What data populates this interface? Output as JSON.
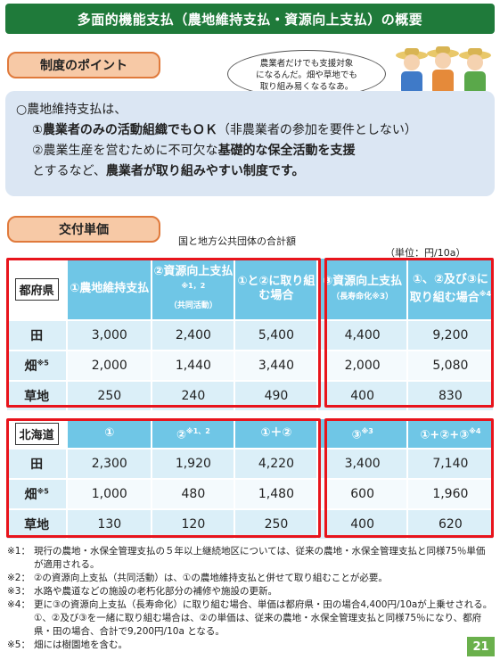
{
  "title": "多面的機能支払（農地維持支払・資源向上支払）の概要",
  "points_label": "制度のポイント",
  "bubble_lines": [
    "農業者だけでも支援対象",
    "になるんだ。畑や草地でも",
    "取り組み易くなるなあ。"
  ],
  "points": {
    "line1": "○農地維持支払は、",
    "line2": "①農業者のみの活動組織でもＯＫ",
    "line2_tail": "（非農業者の参加を要件としない）",
    "line3": "②農業生産を営むために不可欠な",
    "line3_bold": "基礎的な保全活動を支援",
    "line4": "とするなど、",
    "line4_bold": "農業者が取り組みやすい制度です。"
  },
  "grant_label": "交付単価",
  "caption": "国と地方公共団体の合計額",
  "unit": "（単位：円/10a）",
  "pref_table": {
    "label": "都府県",
    "headers": [
      "①農地維持支払",
      "②資源向上支払",
      "①と②に取り組む場合",
      "③資源向上支払",
      "①、②及び③に取り組む場合"
    ],
    "header_notes": [
      "",
      "※1，2",
      "",
      "",
      "※4"
    ],
    "header_subs": [
      "",
      "（共同活動）",
      "",
      "（長寿命化※3）",
      ""
    ],
    "rows": [
      {
        "name": "田",
        "mark": "",
        "values": [
          "3,000",
          "2,400",
          "5,400",
          "4,400",
          "9,200"
        ]
      },
      {
        "name": "畑",
        "mark": "※5",
        "values": [
          "2,000",
          "1,440",
          "3,440",
          "2,000",
          "5,080"
        ]
      },
      {
        "name": "草地",
        "mark": "",
        "values": [
          "250",
          "240",
          "490",
          "400",
          "830"
        ]
      }
    ]
  },
  "hok_table": {
    "label": "北海道",
    "headers": [
      "①",
      "②",
      "①＋②",
      "③",
      "①+②+③"
    ],
    "header_notes": [
      "",
      "※1、2",
      "",
      "※3",
      "※4"
    ],
    "rows": [
      {
        "name": "田",
        "mark": "",
        "values": [
          "2,300",
          "1,920",
          "4,220",
          "3,400",
          "7,140"
        ]
      },
      {
        "name": "畑",
        "mark": "※5",
        "values": [
          "1,000",
          "480",
          "1,480",
          "600",
          "1,960"
        ]
      },
      {
        "name": "草地",
        "mark": "",
        "values": [
          "130",
          "120",
          "250",
          "400",
          "620"
        ]
      }
    ]
  },
  "notes": [
    {
      "mark": "※1：",
      "text": "現行の農地・水保全管理支払の５年以上継続地区については、従来の農地・水保全管理支払と同様75％単価が適用される。"
    },
    {
      "mark": "※2：",
      "text": "②の資源向上支払（共同活動）は、①の農地維持支払と併せて取り組むことが必要。"
    },
    {
      "mark": "※3：",
      "text": "水路や農道などの施設の老朽化部分の補修や施設の更新。"
    },
    {
      "mark": "※4：",
      "text": "更に③の資源向上支払（長寿命化）に取り組む場合、単価は都府県・田の場合4,400円/10aが上乗せされる。①、②及び③を一緒に取り組む場合は、②の単価は、従来の農地・水保全管理支払と同様75％になり、都府県・田の場合、合計で9,200円/10a となる。"
    },
    {
      "mark": "※5：",
      "text": "畑には樹園地を含む。"
    }
  ],
  "page_number": "21",
  "colors": {
    "title_bg": "#1f7a3a",
    "header_blue": "#6fc6e6",
    "frame_red": "#e8141c",
    "label_orange": "#f7c9a6"
  }
}
